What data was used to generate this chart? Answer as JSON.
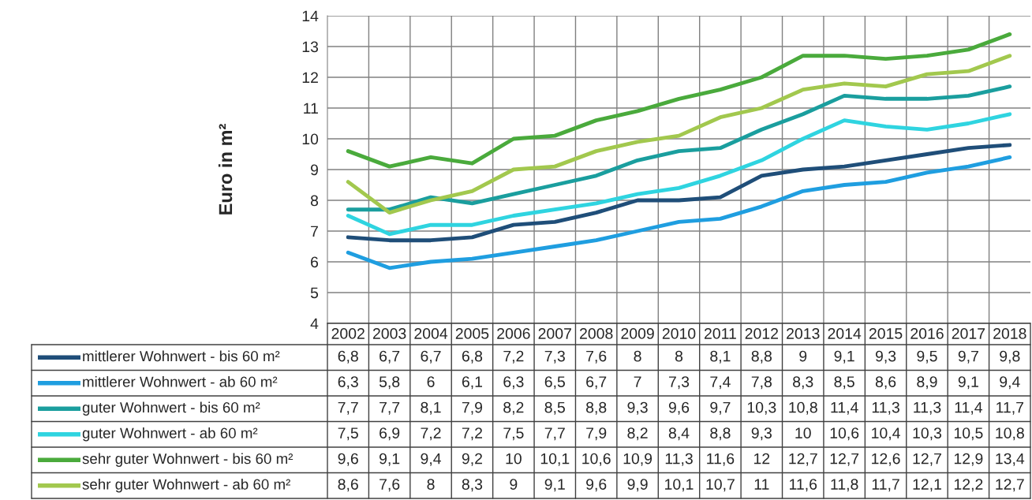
{
  "chart_data": {
    "type": "line",
    "ylabel": "Euro in m²",
    "categories": [
      "2002",
      "2003",
      "2004",
      "2005",
      "2006",
      "2007",
      "2008",
      "2009",
      "2010",
      "2011",
      "2012",
      "2013",
      "2014",
      "2015",
      "2016",
      "2017",
      "2018"
    ],
    "series": [
      {
        "name": "mittlerer Wohnwert - bis 60 m²",
        "color": "#1f4e79",
        "values": [
          6.8,
          6.7,
          6.7,
          6.8,
          7.2,
          7.3,
          7.6,
          8,
          8,
          8.1,
          8.8,
          9,
          9.1,
          9.3,
          9.5,
          9.7,
          9.8
        ],
        "value_labels": [
          "6,8",
          "6,7",
          "6,7",
          "6,8",
          "7,2",
          "7,3",
          "7,6",
          "8",
          "8",
          "8,1",
          "8,8",
          "9",
          "9,1",
          "9,3",
          "9,5",
          "9,7",
          "9,8"
        ]
      },
      {
        "name": "mittlerer Wohnwert - ab 60 m²",
        "color": "#1f9ee0",
        "values": [
          6.3,
          5.8,
          6,
          6.1,
          6.3,
          6.5,
          6.7,
          7,
          7.3,
          7.4,
          7.8,
          8.3,
          8.5,
          8.6,
          8.9,
          9.1,
          9.4
        ],
        "value_labels": [
          "6,3",
          "5,8",
          "6",
          "6,1",
          "6,3",
          "6,5",
          "6,7",
          "7",
          "7,3",
          "7,4",
          "7,8",
          "8,3",
          "8,5",
          "8,6",
          "8,9",
          "9,1",
          "9,4"
        ]
      },
      {
        "name": "guter Wohnwert - bis 60 m²",
        "color": "#1a9e9e",
        "values": [
          7.7,
          7.7,
          8.1,
          7.9,
          8.2,
          8.5,
          8.8,
          9.3,
          9.6,
          9.7,
          10.3,
          10.8,
          11.4,
          11.3,
          11.3,
          11.4,
          11.7
        ],
        "value_labels": [
          "7,7",
          "7,7",
          "8,1",
          "7,9",
          "8,2",
          "8,5",
          "8,8",
          "9,3",
          "9,6",
          "9,7",
          "10,3",
          "10,8",
          "11,4",
          "11,3",
          "11,3",
          "11,4",
          "11,7"
        ]
      },
      {
        "name": "guter Wohnwert - ab 60 m²",
        "color": "#2fd4e0",
        "values": [
          7.5,
          6.9,
          7.2,
          7.2,
          7.5,
          7.7,
          7.9,
          8.2,
          8.4,
          8.8,
          9.3,
          10,
          10.6,
          10.4,
          10.3,
          10.5,
          10.8
        ],
        "value_labels": [
          "7,5",
          "6,9",
          "7,2",
          "7,2",
          "7,5",
          "7,7",
          "7,9",
          "8,2",
          "8,4",
          "8,8",
          "9,3",
          "10",
          "10,6",
          "10,4",
          "10,3",
          "10,5",
          "10,8"
        ]
      },
      {
        "name": "sehr guter Wohnwert - bis 60 m²",
        "color": "#4aaa3c",
        "values": [
          9.6,
          9.1,
          9.4,
          9.2,
          10,
          10.1,
          10.6,
          10.9,
          11.3,
          11.6,
          12,
          12.7,
          12.7,
          12.6,
          12.7,
          12.9,
          13.4
        ],
        "value_labels": [
          "9,6",
          "9,1",
          "9,4",
          "9,2",
          "10",
          "10,1",
          "10,6",
          "10,9",
          "11,3",
          "11,6",
          "12",
          "12,7",
          "12,7",
          "12,6",
          "12,7",
          "12,9",
          "13,4"
        ]
      },
      {
        "name": "sehr guter Wohnwert - ab 60 m²",
        "color": "#a2c84e",
        "values": [
          8.6,
          7.6,
          8,
          8.3,
          9,
          9.1,
          9.6,
          9.9,
          10.1,
          10.7,
          11,
          11.6,
          11.8,
          11.7,
          12.1,
          12.2,
          12.7
        ],
        "value_labels": [
          "8,6",
          "7,6",
          "8",
          "8,3",
          "9",
          "9,1",
          "9,6",
          "9,9",
          "10,1",
          "10,7",
          "11",
          "11,6",
          "11,8",
          "11,7",
          "12,1",
          "12,2",
          "12,7"
        ]
      }
    ],
    "ylim": [
      4,
      14
    ],
    "yticks": [
      4,
      5,
      6,
      7,
      8,
      9,
      10,
      11,
      12,
      13,
      14
    ],
    "grid": true,
    "legend": "bottom"
  }
}
